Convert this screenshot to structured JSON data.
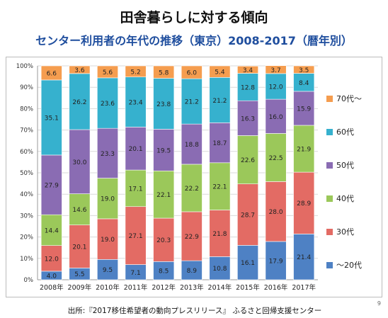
{
  "title": "田舎暮らしに対する傾向",
  "subtitle": "センター利用者の年代の推移（東京）2008-2017（暦年別）",
  "source": "出所:『2017移住希望者の動向プレスリリース』 ふるさと回帰支援センター",
  "page_number": "9",
  "chart_data": {
    "type": "bar",
    "stacked": true,
    "categories": [
      "2008年",
      "2009年",
      "2010年",
      "2011年",
      "2012年",
      "2013年",
      "2014年",
      "2015年",
      "2016年",
      "2017年"
    ],
    "series": [
      {
        "name": "～20代",
        "color": "#4e81c4",
        "values": [
          4.0,
          5.5,
          9.5,
          7.1,
          8.5,
          8.9,
          10.8,
          16.1,
          17.9,
          21.4
        ]
      },
      {
        "name": "30代",
        "color": "#e36b64",
        "values": [
          12.0,
          20.1,
          19.0,
          27.1,
          20.3,
          22.9,
          21.8,
          28.7,
          28.0,
          28.9
        ]
      },
      {
        "name": "40代",
        "color": "#9bc85a",
        "values": [
          14.4,
          14.6,
          19.0,
          17.1,
          22.1,
          22.2,
          22.1,
          22.6,
          22.5,
          21.9
        ]
      },
      {
        "name": "50代",
        "color": "#8a6cb3",
        "values": [
          27.9,
          30.0,
          23.3,
          20.1,
          19.5,
          18.8,
          18.7,
          16.3,
          16.0,
          15.9
        ]
      },
      {
        "name": "60代",
        "color": "#36b1ce",
        "values": [
          35.1,
          26.2,
          23.6,
          23.4,
          23.8,
          21.2,
          21.2,
          12.8,
          12.0,
          8.4
        ]
      },
      {
        "name": "70代～",
        "color": "#f59d4f",
        "values": [
          6.6,
          3.6,
          5.6,
          5.2,
          5.8,
          6.0,
          5.4,
          3.4,
          3.7,
          3.5
        ]
      }
    ],
    "ylim": [
      0,
      100
    ],
    "yticks": [
      "0%",
      "10%",
      "20%",
      "30%",
      "40%",
      "50%",
      "60%",
      "70%",
      "80%",
      "90%",
      "100%"
    ],
    "legend_position": "right"
  }
}
